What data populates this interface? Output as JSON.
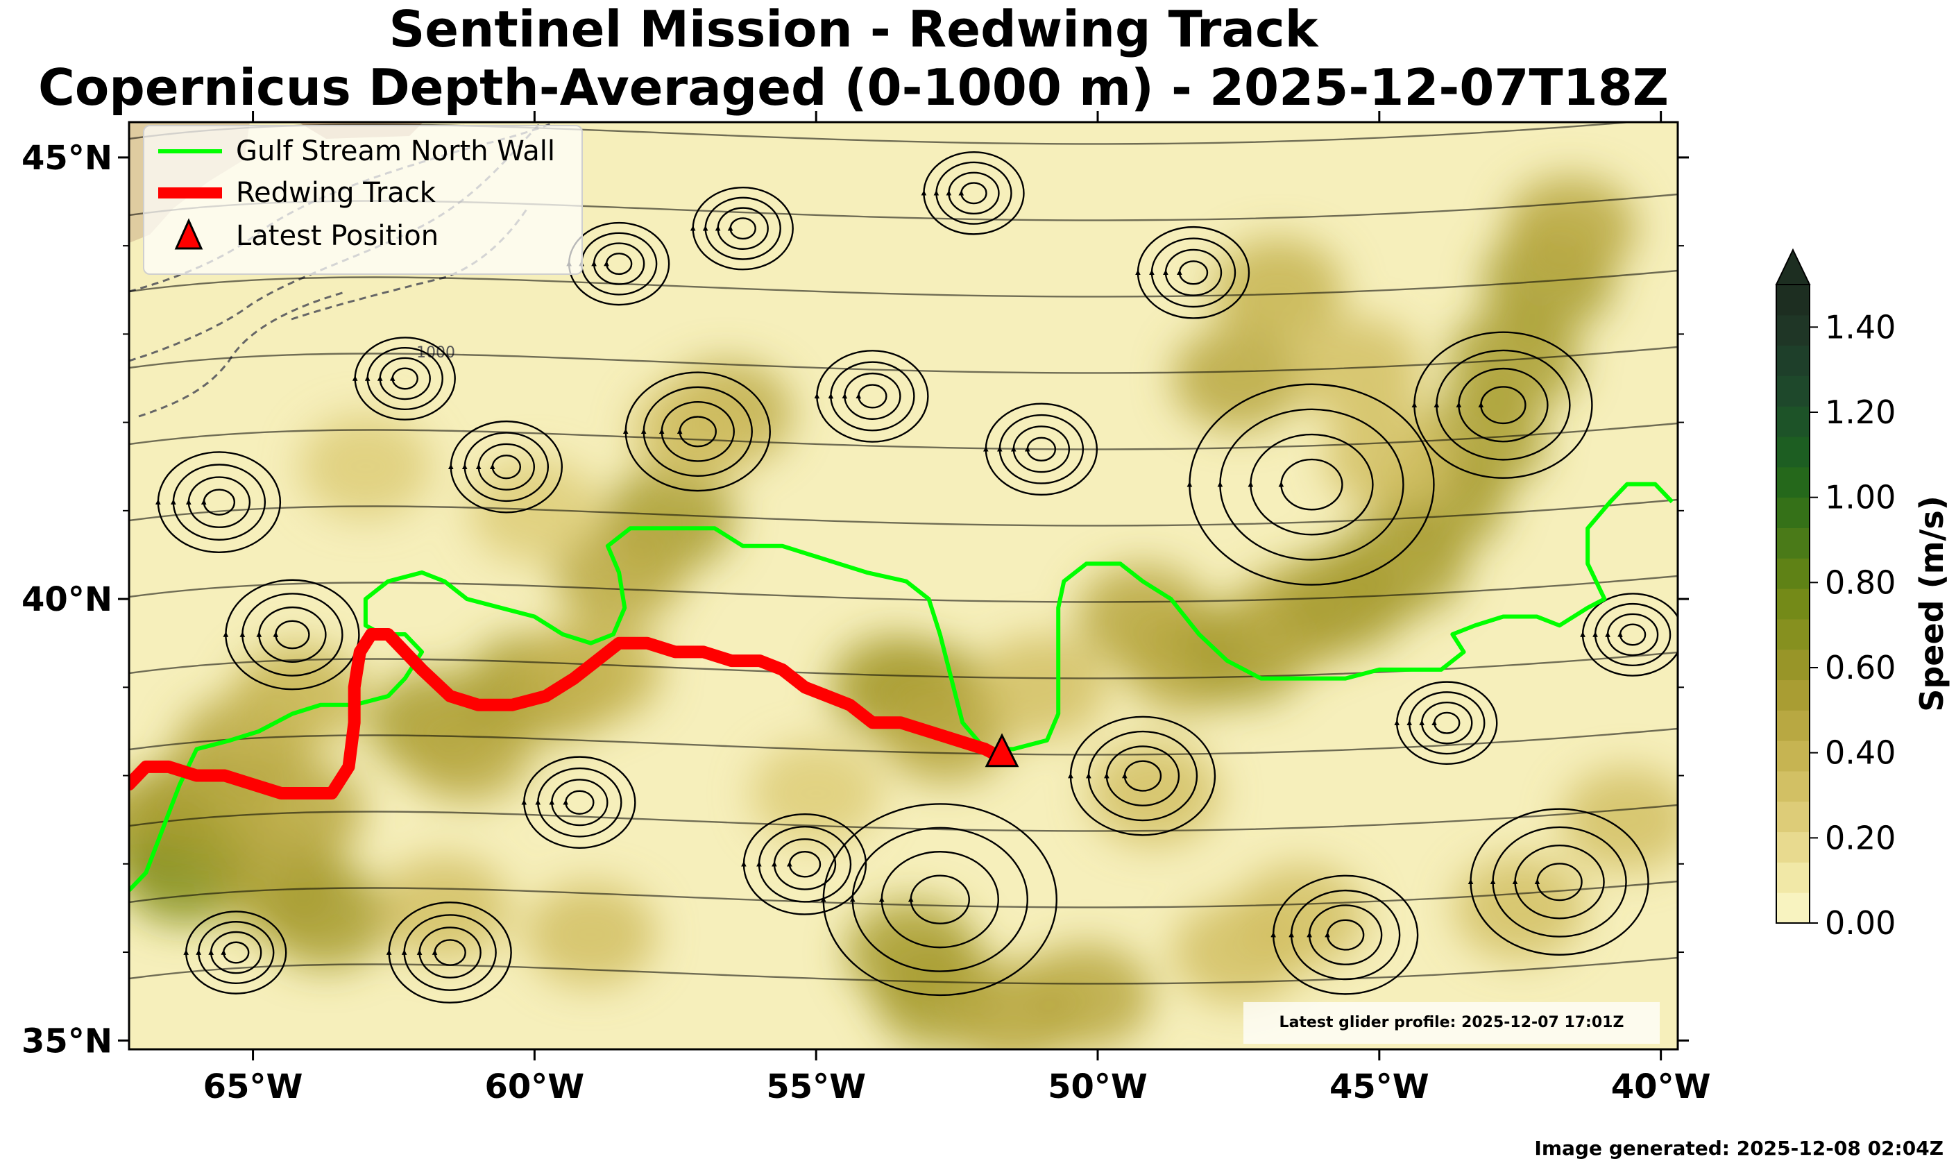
{
  "title": {
    "line1": "Sentinel Mission - Redwing Track",
    "line2": "Copernicus Depth-Averaged (0-1000 m) - 2025-12-07T18Z"
  },
  "map": {
    "lon_range": [
      -67.2,
      -39.7
    ],
    "lat_range": [
      34.9,
      45.4
    ],
    "lon_ticks": [
      {
        "value": -65,
        "label": "65°W"
      },
      {
        "value": -60,
        "label": "60°W"
      },
      {
        "value": -55,
        "label": "55°W"
      },
      {
        "value": -50,
        "label": "50°W"
      },
      {
        "value": -45,
        "label": "45°W"
      },
      {
        "value": -40,
        "label": "40°W"
      }
    ],
    "lat_ticks": [
      {
        "value": 45,
        "label": "45°N"
      },
      {
        "value": 40,
        "label": "40°N"
      },
      {
        "value": 35,
        "label": "35°N"
      }
    ],
    "contour_label": "1000",
    "colors": {
      "gulf_stream": "#00ff00",
      "track": "#ff0000",
      "marker": "#ff0000",
      "land": "#d6b88a"
    },
    "gulf_stream_north_wall": [
      [
        -67.2,
        36.7
      ],
      [
        -66.9,
        36.9
      ],
      [
        -66.6,
        37.4
      ],
      [
        -66.3,
        37.9
      ],
      [
        -66.0,
        38.3
      ],
      [
        -65.4,
        38.4
      ],
      [
        -64.9,
        38.5
      ],
      [
        -64.3,
        38.7
      ],
      [
        -63.8,
        38.8
      ],
      [
        -63.2,
        38.8
      ],
      [
        -62.6,
        38.9
      ],
      [
        -62.3,
        39.1
      ],
      [
        -62.0,
        39.4
      ],
      [
        -62.3,
        39.6
      ],
      [
        -62.7,
        39.6
      ],
      [
        -63.0,
        39.7
      ],
      [
        -63.0,
        40.0
      ],
      [
        -62.6,
        40.2
      ],
      [
        -62.0,
        40.3
      ],
      [
        -61.6,
        40.2
      ],
      [
        -61.2,
        40.0
      ],
      [
        -60.6,
        39.9
      ],
      [
        -60.0,
        39.8
      ],
      [
        -59.5,
        39.6
      ],
      [
        -59.0,
        39.5
      ],
      [
        -58.6,
        39.6
      ],
      [
        -58.4,
        39.9
      ],
      [
        -58.5,
        40.3
      ],
      [
        -58.7,
        40.6
      ],
      [
        -58.3,
        40.8
      ],
      [
        -57.6,
        40.8
      ],
      [
        -56.8,
        40.8
      ],
      [
        -56.3,
        40.6
      ],
      [
        -55.6,
        40.6
      ],
      [
        -55.1,
        40.5
      ],
      [
        -54.6,
        40.4
      ],
      [
        -54.1,
        40.3
      ],
      [
        -53.4,
        40.2
      ],
      [
        -53.0,
        40.0
      ],
      [
        -52.8,
        39.6
      ],
      [
        -52.6,
        39.1
      ],
      [
        -52.4,
        38.6
      ],
      [
        -52.0,
        38.3
      ],
      [
        -51.5,
        38.3
      ],
      [
        -50.9,
        38.4
      ],
      [
        -50.7,
        38.7
      ],
      [
        -50.7,
        39.3
      ],
      [
        -50.7,
        39.9
      ],
      [
        -50.6,
        40.2
      ],
      [
        -50.2,
        40.4
      ],
      [
        -49.6,
        40.4
      ],
      [
        -49.2,
        40.2
      ],
      [
        -48.7,
        40.0
      ],
      [
        -48.2,
        39.6
      ],
      [
        -47.7,
        39.3
      ],
      [
        -47.1,
        39.1
      ],
      [
        -46.3,
        39.1
      ],
      [
        -45.6,
        39.1
      ],
      [
        -45.0,
        39.2
      ],
      [
        -44.4,
        39.2
      ],
      [
        -43.9,
        39.2
      ],
      [
        -43.5,
        39.4
      ],
      [
        -43.7,
        39.6
      ],
      [
        -43.3,
        39.7
      ],
      [
        -42.8,
        39.8
      ],
      [
        -42.2,
        39.8
      ],
      [
        -41.8,
        39.7
      ],
      [
        -41.3,
        39.9
      ],
      [
        -41.0,
        40.0
      ],
      [
        -41.3,
        40.4
      ],
      [
        -41.3,
        40.8
      ],
      [
        -40.9,
        41.1
      ],
      [
        -40.6,
        41.3
      ],
      [
        -40.1,
        41.3
      ],
      [
        -39.8,
        41.1
      ]
    ],
    "redwing_track": [
      [
        -67.2,
        37.9
      ],
      [
        -66.9,
        38.1
      ],
      [
        -66.5,
        38.1
      ],
      [
        -66.0,
        38.0
      ],
      [
        -65.5,
        38.0
      ],
      [
        -65.0,
        37.9
      ],
      [
        -64.5,
        37.8
      ],
      [
        -64.0,
        37.8
      ],
      [
        -63.6,
        37.8
      ],
      [
        -63.3,
        38.1
      ],
      [
        -63.2,
        38.6
      ],
      [
        -63.2,
        39.0
      ],
      [
        -63.1,
        39.4
      ],
      [
        -62.9,
        39.6
      ],
      [
        -62.6,
        39.6
      ],
      [
        -62.3,
        39.4
      ],
      [
        -62.0,
        39.2
      ],
      [
        -61.5,
        38.9
      ],
      [
        -61.0,
        38.8
      ],
      [
        -60.4,
        38.8
      ],
      [
        -59.8,
        38.9
      ],
      [
        -59.3,
        39.1
      ],
      [
        -58.9,
        39.3
      ],
      [
        -58.5,
        39.5
      ],
      [
        -58.0,
        39.5
      ],
      [
        -57.5,
        39.4
      ],
      [
        -57.0,
        39.4
      ],
      [
        -56.5,
        39.3
      ],
      [
        -56.0,
        39.3
      ],
      [
        -55.6,
        39.2
      ],
      [
        -55.2,
        39.0
      ],
      [
        -54.8,
        38.9
      ],
      [
        -54.4,
        38.8
      ],
      [
        -54.0,
        38.6
      ],
      [
        -53.5,
        38.6
      ],
      [
        -53.0,
        38.5
      ],
      [
        -52.5,
        38.4
      ],
      [
        -52.0,
        38.3
      ],
      [
        -51.7,
        38.2
      ]
    ],
    "latest_position": [
      -51.7,
      38.25
    ],
    "speed_samples": [
      [
        -66.8,
        37.4,
        0.55
      ],
      [
        -66.2,
        36.9,
        0.65
      ],
      [
        -65.9,
        37.7,
        0.5
      ],
      [
        -64.5,
        36.8,
        0.55
      ],
      [
        -64.2,
        37.6,
        0.45
      ],
      [
        -63.7,
        36.4,
        0.5
      ],
      [
        -65.2,
        38.3,
        0.45
      ],
      [
        -64.2,
        38.9,
        0.4
      ],
      [
        -61.8,
        38.6,
        0.55
      ],
      [
        -61.2,
        38.3,
        0.45
      ],
      [
        -60.1,
        39.0,
        0.5
      ],
      [
        -59.6,
        39.0,
        0.45
      ],
      [
        -58.9,
        39.2,
        0.4
      ],
      [
        -57.6,
        40.9,
        0.55
      ],
      [
        -58.5,
        40.3,
        0.45
      ],
      [
        -53.6,
        39.0,
        0.5
      ],
      [
        -53.0,
        38.9,
        0.55
      ],
      [
        -52.7,
        38.5,
        0.45
      ],
      [
        -51.0,
        39.0,
        0.35
      ],
      [
        -49.2,
        39.8,
        0.45
      ],
      [
        -48.4,
        39.3,
        0.45
      ],
      [
        -47.4,
        39.4,
        0.5
      ],
      [
        -46.4,
        39.8,
        0.45
      ],
      [
        -45.6,
        40.0,
        0.55
      ],
      [
        -44.6,
        40.4,
        0.5
      ],
      [
        -43.9,
        41.1,
        0.5
      ],
      [
        -43.2,
        41.8,
        0.55
      ],
      [
        -42.6,
        42.7,
        0.55
      ],
      [
        -42.0,
        43.6,
        0.5
      ],
      [
        -41.6,
        44.2,
        0.45
      ],
      [
        -47.5,
        42.5,
        0.45
      ],
      [
        -46.8,
        43.5,
        0.4
      ],
      [
        -53.3,
        36.0,
        0.55
      ],
      [
        -52.8,
        35.5,
        0.5
      ],
      [
        -51.5,
        35.3,
        0.45
      ],
      [
        -50.2,
        35.5,
        0.45
      ],
      [
        -56.6,
        42.1,
        0.45
      ],
      [
        -57.1,
        41.9,
        0.35
      ],
      [
        -46.4,
        36.4,
        0.35
      ],
      [
        -42.5,
        36.5,
        0.35
      ],
      [
        -40.6,
        37.5,
        0.3
      ],
      [
        -47.5,
        36.0,
        0.3
      ],
      [
        -59.0,
        36.2,
        0.3
      ],
      [
        -61.6,
        36.5,
        0.3
      ],
      [
        -55.0,
        37.8,
        0.25
      ],
      [
        -49.0,
        37.8,
        0.3
      ],
      [
        -44.8,
        41.6,
        0.35
      ],
      [
        -45.4,
        42.6,
        0.35
      ],
      [
        -63.0,
        41.5,
        0.25
      ],
      [
        -60.0,
        41.0,
        0.25
      ]
    ]
  },
  "legend": {
    "items": [
      {
        "label": "Gulf Stream North Wall"
      },
      {
        "label": "Redwing Track"
      },
      {
        "label": "Latest Position"
      }
    ]
  },
  "colorbar": {
    "title": "Speed (m/s)",
    "ticks": [
      "0.00",
      "0.20",
      "0.40",
      "0.60",
      "0.80",
      "1.00",
      "1.20",
      "1.40"
    ],
    "min": 0.0,
    "max": 1.5,
    "colors": [
      "#f8f3c0",
      "#f1e8a7",
      "#e8da8f",
      "#ddcc78",
      "#d2c064",
      "#c6b452",
      "#b8a842",
      "#a99d33",
      "#989528",
      "#86901f",
      "#748a18",
      "#5f8216",
      "#4a7a18",
      "#357118",
      "#25681b",
      "#1d5e22",
      "#1d5328",
      "#1e482b",
      "#1e3f2a",
      "#1f3626",
      "#1d2e21"
    ]
  },
  "annotations": {
    "profile": "Latest glider profile: 2025-12-07 17:01Z",
    "generated": "Image generated: 2025-12-08 02:04Z"
  }
}
